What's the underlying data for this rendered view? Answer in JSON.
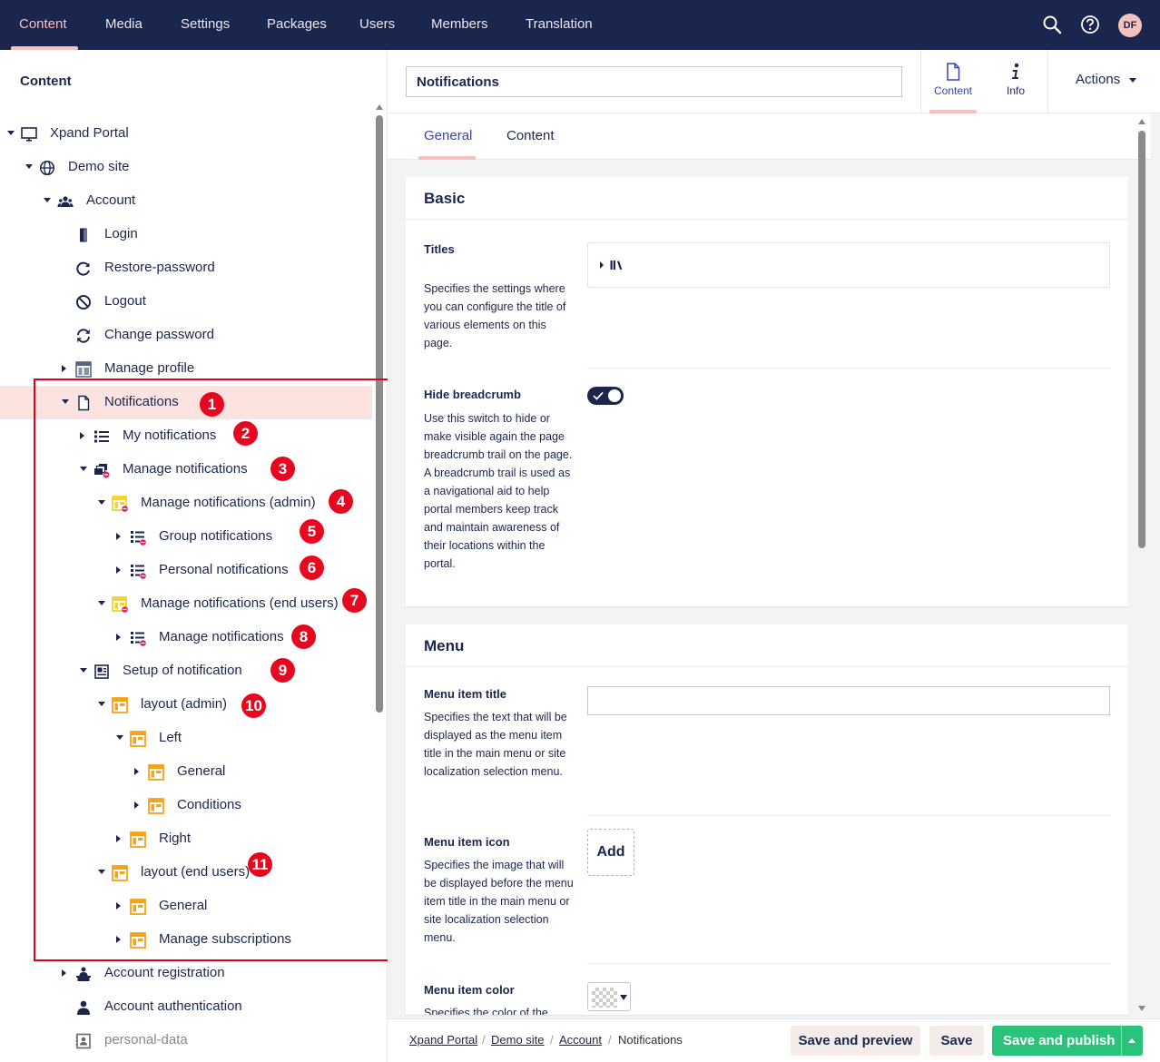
{
  "topnav": {
    "items": [
      "Content",
      "Media",
      "Settings",
      "Packages",
      "Users",
      "Members",
      "Translation"
    ],
    "active": "Content",
    "avatar_initials": "DF",
    "colors": {
      "background": "#1b264f",
      "active": "#f5c1bc"
    }
  },
  "tree": {
    "title": "Content",
    "items": [
      {
        "label": "Xpand Portal",
        "icon": "monitor-icon"
      },
      {
        "label": "Demo site",
        "icon": "globe-icon"
      },
      {
        "label": "Account",
        "icon": "users-icon"
      },
      {
        "label": "Login",
        "icon": "door-icon"
      },
      {
        "label": "Restore-password",
        "icon": "refresh-icon"
      },
      {
        "label": "Logout",
        "icon": "block-icon"
      },
      {
        "label": "Change password",
        "icon": "sync-icon"
      },
      {
        "label": "Manage profile",
        "icon": "layout-icon"
      },
      {
        "label": "Notifications",
        "icon": "document-icon",
        "selected": true
      },
      {
        "label": "My notifications",
        "icon": "list-icon"
      },
      {
        "label": "Manage notifications",
        "icon": "stack-blocked-icon"
      },
      {
        "label": "Manage notifications (admin)",
        "icon": "yellow-layout-blocked-icon"
      },
      {
        "label": "Group notifications",
        "icon": "list-blocked-icon"
      },
      {
        "label": "Personal notifications",
        "icon": "list-blocked-icon"
      },
      {
        "label": "Manage notifications (end users)",
        "icon": "yellow-layout-blocked-icon"
      },
      {
        "label": "Manage notifications",
        "icon": "list-blocked-icon"
      },
      {
        "label": "Setup of notification",
        "icon": "newspaper-icon"
      },
      {
        "label": "layout (admin)",
        "icon": "orange-layout-icon"
      },
      {
        "label": "Left",
        "icon": "orange-layout-icon"
      },
      {
        "label": "General",
        "icon": "orange-layout-icon"
      },
      {
        "label": "Conditions",
        "icon": "orange-layout-icon"
      },
      {
        "label": "Right",
        "icon": "orange-layout-icon"
      },
      {
        "label": "layout (end users)",
        "icon": "orange-layout-icon"
      },
      {
        "label": "General",
        "icon": "orange-layout-icon"
      },
      {
        "label": "Manage subscriptions",
        "icon": "orange-layout-icon"
      },
      {
        "label": "Account registration",
        "icon": "user-desk-icon"
      },
      {
        "label": "Account authentication",
        "icon": "user-icon"
      },
      {
        "label": "personal-data",
        "icon": "contact-card-icon"
      }
    ],
    "badges": [
      "1",
      "2",
      "3",
      "4",
      "5",
      "6",
      "7",
      "8",
      "9",
      "10",
      "11"
    ],
    "annotation_color": "#e1001a"
  },
  "editor": {
    "name_value": "Notifications",
    "apps": [
      {
        "label": "Content",
        "icon": "document-icon"
      },
      {
        "label": "Info",
        "icon": "info-icon"
      }
    ],
    "actions_label": "Actions",
    "tabs": [
      "General",
      "Content"
    ],
    "basic": {
      "title": "Basic",
      "titles_label": "Titles",
      "titles_desc": "Specifies the settings where you can configure the title of various elements on this page.",
      "hide_breadcrumb_label": "Hide breadcrumb",
      "hide_breadcrumb_desc": "Use this switch to hide or make visible again the page breadcrumb trail on the page. A breadcrumb trail is used as a navigational aid to help portal members keep track and maintain awareness of their locations within the portal.",
      "hide_breadcrumb_on": true
    },
    "menu": {
      "title": "Menu",
      "item_title_label": "Menu item title",
      "item_title_desc": "Specifies the text that will be displayed as the menu item title in the main menu or site localization selection menu.",
      "item_title_value": "",
      "item_icon_label": "Menu item icon",
      "item_icon_desc": "Specifies the image that will be displayed before the menu item title in the main menu or site localization selection menu.",
      "add_label": "Add",
      "item_color_label": "Menu item color",
      "item_color_desc": "Specifies the color of the"
    }
  },
  "footer": {
    "breadcrumb": [
      "Xpand Portal",
      "Demo site",
      "Account",
      "Notifications"
    ],
    "save_preview": "Save and preview",
    "save": "Save",
    "save_publish": "Save and publish",
    "publish_color": "#2bc37c"
  }
}
